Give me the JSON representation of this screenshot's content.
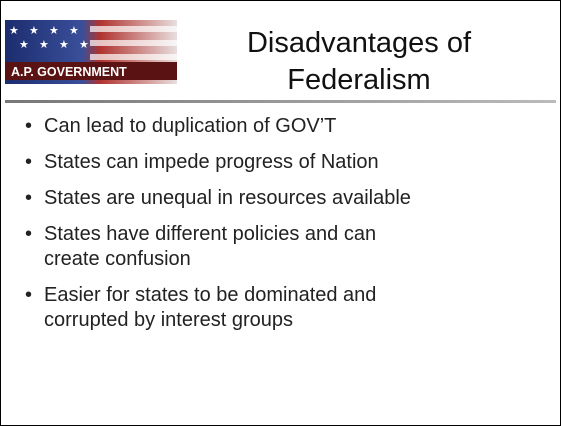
{
  "header": {
    "logo_text": "A.P. GOVERNMENT",
    "title": [
      "Disadvantages of",
      "Federalism"
    ]
  },
  "bullets": [
    [
      "Can lead to duplication of GOV’T"
    ],
    [
      "States can impede progress of Nation"
    ],
    [
      "States are unequal in resources available"
    ],
    [
      "States have different policies and can",
      "create confusion"
    ],
    [
      "Easier for states to be dominated and",
      "corrupted by interest groups"
    ]
  ]
}
